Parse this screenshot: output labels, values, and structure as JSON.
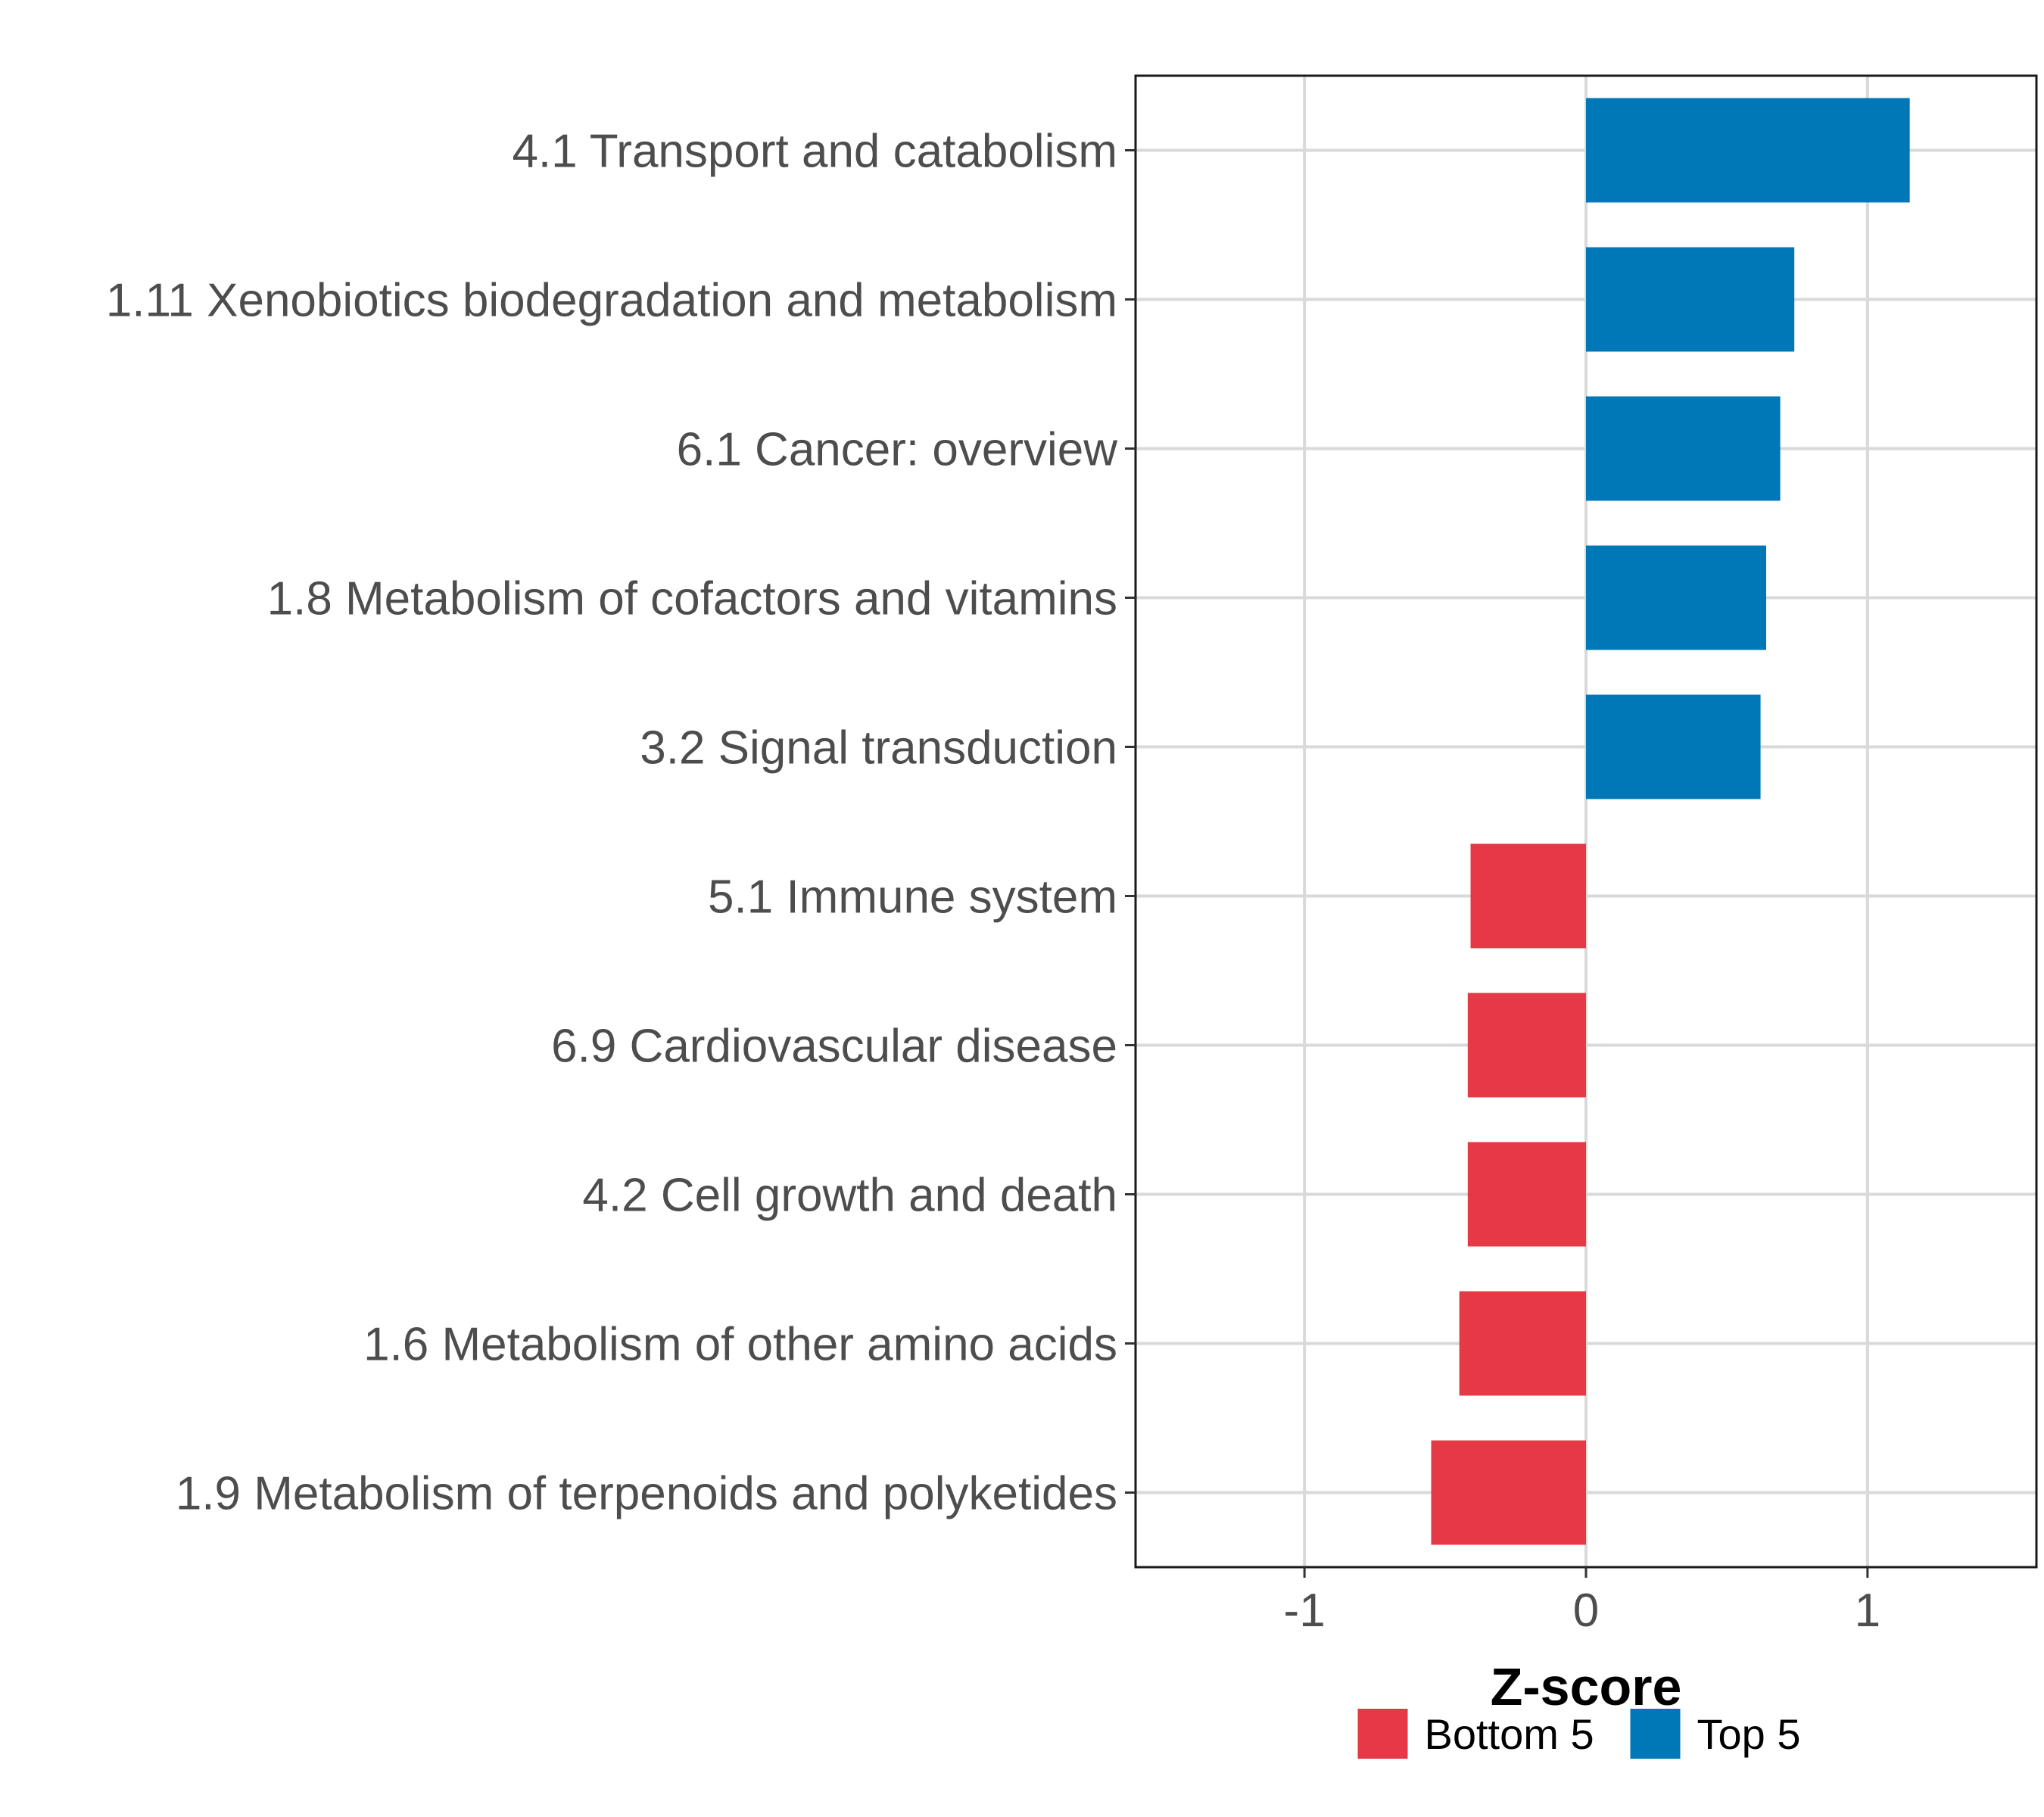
{
  "chart_data": {
    "type": "bar",
    "orientation": "horizontal",
    "title": "",
    "xlabel": "Z-score",
    "ylabel": "",
    "xlim": [
      -1.6,
      1.6
    ],
    "x_ticks": [
      -1,
      0,
      1
    ],
    "x_tick_labels": [
      "-1",
      "0",
      "1"
    ],
    "grid": true,
    "legend_position": "bottom",
    "categories": [
      "4.1 Transport and catabolism",
      "1.11 Xenobiotics biodegradation and metabolism",
      "6.1 Cancer: overview",
      "1.8 Metabolism of cofactors and vitamins",
      "3.2 Signal transduction",
      "5.1 Immune system",
      "6.9 Cardiovascular disease",
      "4.2 Cell growth and death",
      "1.6 Metabolism of other amino acids",
      "1.9 Metabolism of terpenoids and polyketides"
    ],
    "values": [
      1.15,
      0.74,
      0.69,
      0.64,
      0.62,
      -0.41,
      -0.42,
      -0.42,
      -0.45,
      -0.55
    ],
    "groups": [
      "Top 5",
      "Top 5",
      "Top 5",
      "Top 5",
      "Top 5",
      "Bottom 5",
      "Bottom 5",
      "Bottom 5",
      "Bottom 5",
      "Bottom 5"
    ],
    "legend": [
      {
        "name": "Bottom 5",
        "color": "#E63946"
      },
      {
        "name": "Top 5",
        "color": "#0077B6"
      }
    ]
  }
}
